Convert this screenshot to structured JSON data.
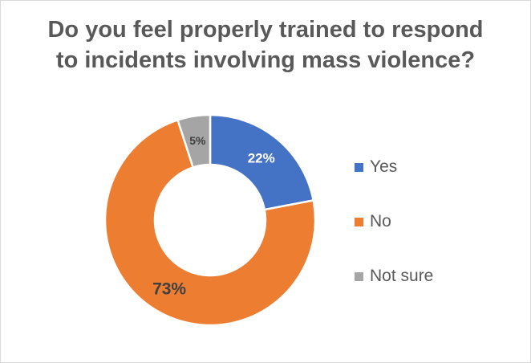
{
  "chart_data": {
    "type": "pie",
    "donut": true,
    "title_lines": [
      "Do you feel properly trained to respond",
      "to incidents involving mass violence?"
    ],
    "slices": [
      {
        "name": "Yes",
        "value": 22,
        "label": "22%",
        "color": "#4472C4",
        "label_color": "#ffffff"
      },
      {
        "name": "No",
        "value": 73,
        "label": "73%",
        "color": "#ED7D31",
        "label_color": "#404040"
      },
      {
        "name": "Not sure",
        "value": 5,
        "label": "5%",
        "color": "#A5A5A5",
        "label_color": "#404040"
      }
    ],
    "legend_position": "right"
  }
}
